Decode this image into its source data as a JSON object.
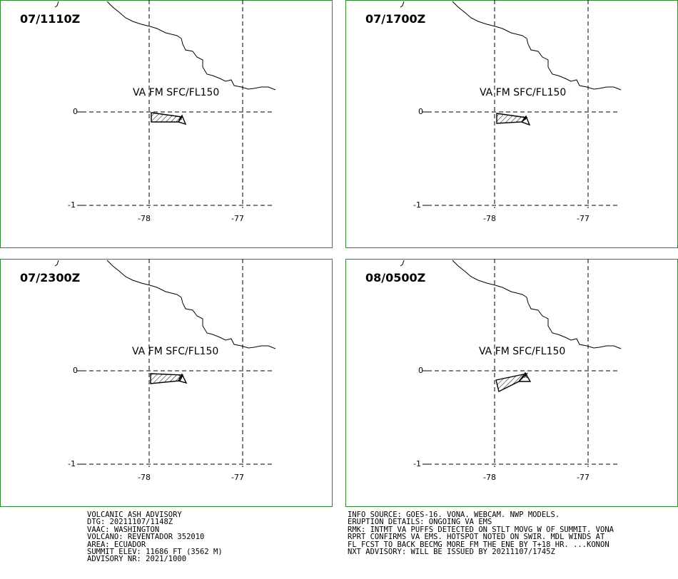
{
  "colors": {
    "frame": "#2f8a2f",
    "ink": "#000000"
  },
  "panels": [
    {
      "time": "07/1110Z",
      "va_label": "VA FM SFC/FL150"
    },
    {
      "time": "07/1700Z",
      "va_label": "VA FM SFC/FL150"
    },
    {
      "time": "07/2300Z",
      "va_label": "VA FM SFC/FL150"
    },
    {
      "time": "08/0500Z",
      "va_label": "VA FM SFC/FL150"
    }
  ],
  "axes": {
    "lat_labels": [
      "0",
      "-1"
    ],
    "lon_labels": [
      "-78",
      "-77"
    ]
  },
  "advisory_left": [
    "VOLCANIC ASH ADVISORY",
    "DTG: 20211107/1148Z",
    "VAAC: WASHINGTON",
    "VOLCANO: REVENTADOR 352010",
    "AREA: ECUADOR",
    "SUMMIT ELEV: 11686 FT (3562 M)",
    "ADVISORY NR: 2021/1000"
  ],
  "advisory_right": [
    "INFO SOURCE: GOES-16. VONA. WEBCAM. NWP MODELS.",
    "ERUPTION DETAILS: ONGOING VA EMS",
    "RMK: INTMT VA PUFFS DETECTED ON STLT MOVG W OF SUMMIT. VONA",
    "RPRT CONFIRMS VA EMS. HOTSPOT NOTED ON SWIR. MDL WINDS AT",
    "FL FCST TO BACK BECMG MORE FM THE ENE BY T+18 HR. ...KONON",
    "NXT ADVISORY: WILL BE ISSUED BY 20211107/1745Z"
  ]
}
